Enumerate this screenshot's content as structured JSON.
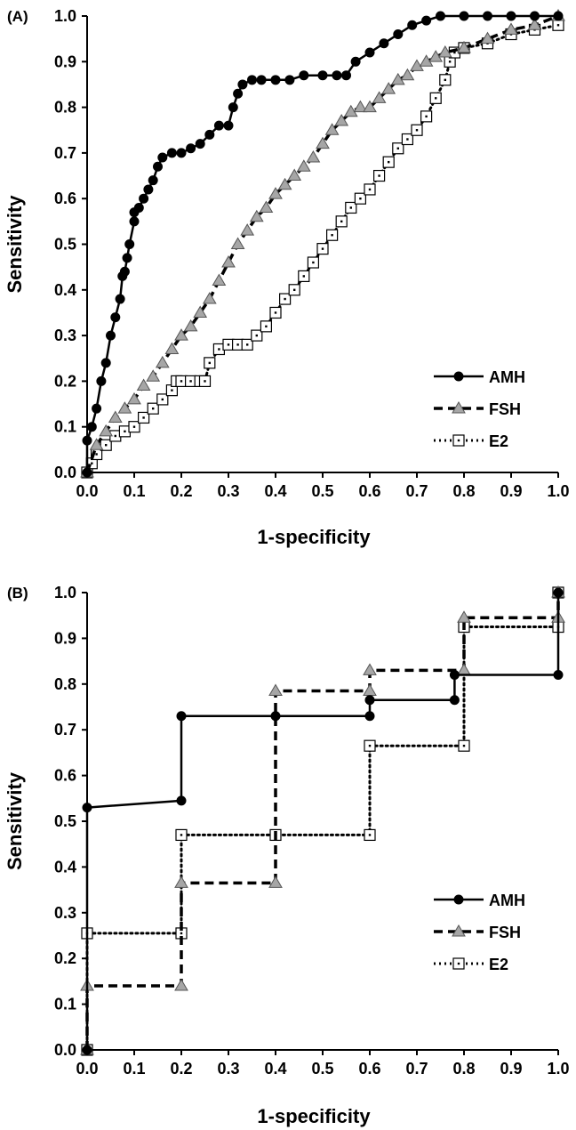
{
  "chart_data": [
    {
      "type": "line",
      "panel_label": "(A)",
      "xlabel": "1-specificity",
      "ylabel": "Sensitivity",
      "xlim": [
        0,
        1
      ],
      "ylim": [
        0,
        1
      ],
      "x_ticks": [
        "0.0",
        "0.1",
        "0.2",
        "0.3",
        "0.4",
        "0.5",
        "0.6",
        "0.7",
        "0.8",
        "0.9",
        "1.0"
      ],
      "y_ticks": [
        "0.0",
        "0.1",
        "0.2",
        "0.3",
        "0.4",
        "0.5",
        "0.6",
        "0.7",
        "0.8",
        "0.9",
        "1.0"
      ],
      "grid": false,
      "legend_position": "bottom-right",
      "series": [
        {
          "name": "AMH",
          "line_style": "solid",
          "marker": "filled-circle",
          "color": "#000000",
          "x": [
            0,
            0,
            0.01,
            0.02,
            0.03,
            0.04,
            0.05,
            0.06,
            0.07,
            0.075,
            0.08,
            0.085,
            0.09,
            0.1,
            0.1,
            0.11,
            0.12,
            0.13,
            0.14,
            0.15,
            0.16,
            0.18,
            0.2,
            0.22,
            0.24,
            0.26,
            0.28,
            0.3,
            0.31,
            0.32,
            0.33,
            0.35,
            0.37,
            0.4,
            0.43,
            0.46,
            0.5,
            0.53,
            0.55,
            0.57,
            0.6,
            0.63,
            0.66,
            0.69,
            0.72,
            0.75,
            0.8,
            0.85,
            0.9,
            0.95,
            1.0
          ],
          "y": [
            0,
            0.07,
            0.1,
            0.14,
            0.2,
            0.24,
            0.3,
            0.34,
            0.38,
            0.43,
            0.44,
            0.47,
            0.5,
            0.55,
            0.57,
            0.58,
            0.6,
            0.62,
            0.64,
            0.67,
            0.69,
            0.7,
            0.7,
            0.71,
            0.72,
            0.74,
            0.76,
            0.76,
            0.8,
            0.83,
            0.85,
            0.86,
            0.86,
            0.86,
            0.86,
            0.87,
            0.87,
            0.87,
            0.87,
            0.9,
            0.92,
            0.94,
            0.96,
            0.98,
            0.99,
            1.0,
            1.0,
            1.0,
            1.0,
            1.0,
            1.0
          ]
        },
        {
          "name": "FSH",
          "line_style": "dashed",
          "marker": "gray-triangle",
          "color": "#000000",
          "x": [
            0,
            0.02,
            0.04,
            0.06,
            0.08,
            0.1,
            0.12,
            0.14,
            0.16,
            0.18,
            0.2,
            0.22,
            0.24,
            0.26,
            0.28,
            0.3,
            0.32,
            0.34,
            0.36,
            0.38,
            0.4,
            0.42,
            0.44,
            0.46,
            0.48,
            0.5,
            0.52,
            0.54,
            0.56,
            0.58,
            0.6,
            0.62,
            0.64,
            0.66,
            0.68,
            0.7,
            0.72,
            0.74,
            0.76,
            0.8,
            0.85,
            0.9,
            0.95,
            1.0
          ],
          "y": [
            0,
            0.06,
            0.09,
            0.12,
            0.14,
            0.16,
            0.19,
            0.21,
            0.24,
            0.27,
            0.3,
            0.32,
            0.35,
            0.38,
            0.42,
            0.46,
            0.5,
            0.53,
            0.56,
            0.58,
            0.61,
            0.63,
            0.65,
            0.67,
            0.69,
            0.72,
            0.75,
            0.77,
            0.79,
            0.8,
            0.8,
            0.82,
            0.84,
            0.86,
            0.87,
            0.89,
            0.9,
            0.91,
            0.92,
            0.93,
            0.95,
            0.97,
            0.98,
            1.0
          ]
        },
        {
          "name": "E2",
          "line_style": "dotted",
          "marker": "open-square",
          "color": "#000000",
          "x": [
            0,
            0.01,
            0.02,
            0.04,
            0.06,
            0.08,
            0.1,
            0.12,
            0.14,
            0.16,
            0.18,
            0.19,
            0.2,
            0.22,
            0.24,
            0.25,
            0.26,
            0.28,
            0.3,
            0.32,
            0.34,
            0.36,
            0.38,
            0.4,
            0.42,
            0.44,
            0.46,
            0.48,
            0.5,
            0.52,
            0.54,
            0.56,
            0.58,
            0.6,
            0.62,
            0.64,
            0.66,
            0.68,
            0.7,
            0.72,
            0.74,
            0.76,
            0.77,
            0.78,
            0.8,
            0.85,
            0.9,
            0.95,
            1.0
          ],
          "y": [
            0,
            0.02,
            0.04,
            0.06,
            0.08,
            0.09,
            0.1,
            0.12,
            0.14,
            0.16,
            0.18,
            0.2,
            0.2,
            0.2,
            0.2,
            0.2,
            0.24,
            0.27,
            0.28,
            0.28,
            0.28,
            0.3,
            0.32,
            0.35,
            0.38,
            0.4,
            0.43,
            0.46,
            0.49,
            0.52,
            0.55,
            0.58,
            0.6,
            0.62,
            0.65,
            0.68,
            0.71,
            0.73,
            0.75,
            0.78,
            0.82,
            0.86,
            0.9,
            0.92,
            0.93,
            0.94,
            0.96,
            0.97,
            0.98
          ]
        }
      ]
    },
    {
      "type": "line",
      "panel_label": "(B)",
      "xlabel": "1-specificity",
      "ylabel": "Sensitivity",
      "xlim": [
        0,
        1
      ],
      "ylim": [
        0,
        1
      ],
      "x_ticks": [
        "0.0",
        "0.1",
        "0.2",
        "0.3",
        "0.4",
        "0.5",
        "0.6",
        "0.7",
        "0.8",
        "0.9",
        "1.0"
      ],
      "y_ticks": [
        "0.0",
        "0.1",
        "0.2",
        "0.3",
        "0.4",
        "0.5",
        "0.6",
        "0.7",
        "0.8",
        "0.9",
        "1.0"
      ],
      "grid": false,
      "legend_position": "bottom-right",
      "series": [
        {
          "name": "AMH",
          "line_style": "solid",
          "marker": "filled-circle",
          "color": "#000000",
          "x": [
            0,
            0,
            0.2,
            0.2,
            0.4,
            0.6,
            0.6,
            0.78,
            0.78,
            1.0,
            1.0
          ],
          "y": [
            0,
            0.53,
            0.545,
            0.73,
            0.73,
            0.73,
            0.765,
            0.765,
            0.82,
            0.82,
            1.0
          ]
        },
        {
          "name": "FSH",
          "line_style": "dashed",
          "marker": "gray-triangle",
          "color": "#000000",
          "x": [
            0,
            0,
            0.2,
            0.2,
            0.4,
            0.4,
            0.6,
            0.6,
            0.8,
            0.8,
            1.0,
            1.0
          ],
          "y": [
            0,
            0.14,
            0.14,
            0.365,
            0.365,
            0.785,
            0.785,
            0.83,
            0.83,
            0.945,
            0.945,
            1.0
          ]
        },
        {
          "name": "E2",
          "line_style": "dotted",
          "marker": "open-square",
          "color": "#000000",
          "x": [
            0,
            0,
            0.2,
            0.2,
            0.4,
            0.6,
            0.6,
            0.8,
            0.8,
            1.0,
            1.0
          ],
          "y": [
            0,
            0.255,
            0.255,
            0.47,
            0.47,
            0.47,
            0.665,
            0.665,
            0.925,
            0.925,
            1.0
          ]
        }
      ]
    }
  ]
}
